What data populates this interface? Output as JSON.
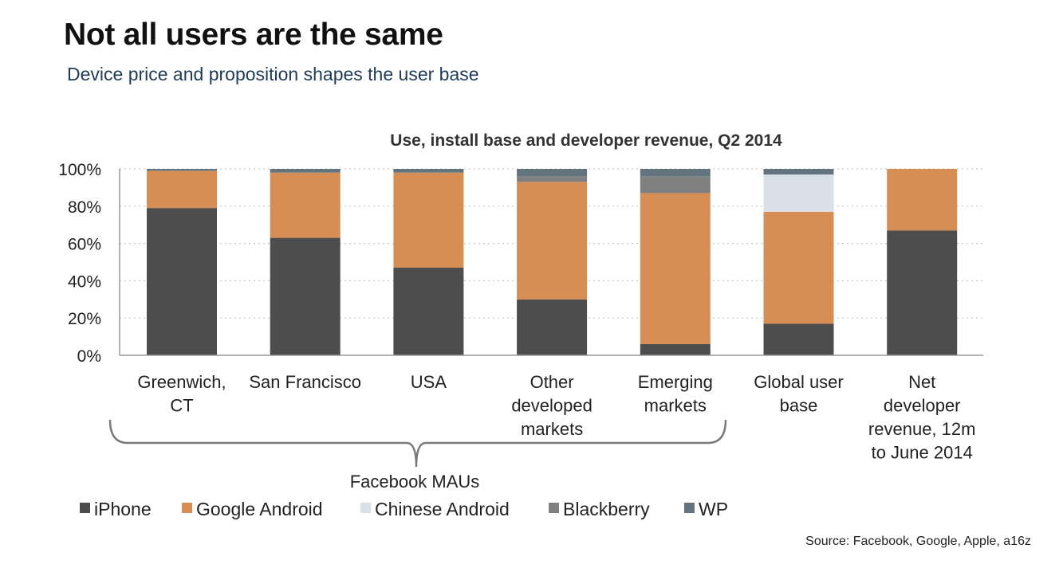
{
  "header": {
    "title": "Not all users are the same",
    "subtitle": "Device price and proposition shapes the user base"
  },
  "source": "Source: Facebook, Google, Apple, a16z",
  "bracket_label": "Facebook MAUs",
  "colors": {
    "iPhone": "#4d4d4d",
    "Google Android": "#d68e55",
    "Chinese Android": "#d9e0e8",
    "Blackberry": "#808080",
    "WP": "#64747f"
  },
  "chart_data": {
    "type": "bar",
    "stacked": true,
    "title": "Use, install base and developer revenue, Q2 2014",
    "xlabel": "",
    "ylabel": "",
    "ylim": [
      0,
      100
    ],
    "y_ticks": [
      "0%",
      "20%",
      "40%",
      "60%",
      "80%",
      "100%"
    ],
    "grid": true,
    "legend_position": "bottom-left",
    "categories": [
      [
        "Greenwich,",
        "CT"
      ],
      [
        "San Francisco"
      ],
      [
        "USA"
      ],
      [
        "Other",
        "developed",
        "markets"
      ],
      [
        "Emerging",
        "markets"
      ],
      [
        "Global user",
        "base"
      ],
      [
        "Net",
        "developer",
        "revenue, 12m",
        "to June 2014"
      ]
    ],
    "series": [
      {
        "name": "iPhone",
        "values": [
          79,
          63,
          47,
          30,
          6,
          17,
          67
        ]
      },
      {
        "name": "Google Android",
        "values": [
          20,
          35,
          51,
          63,
          81,
          60,
          33
        ]
      },
      {
        "name": "Chinese Android",
        "values": [
          0,
          0,
          0,
          0,
          0,
          20,
          0
        ]
      },
      {
        "name": "Blackberry",
        "values": [
          0,
          0,
          0,
          3,
          9,
          0,
          0
        ]
      },
      {
        "name": "WP",
        "values": [
          1,
          2,
          2,
          4,
          4,
          3,
          0
        ]
      }
    ]
  }
}
